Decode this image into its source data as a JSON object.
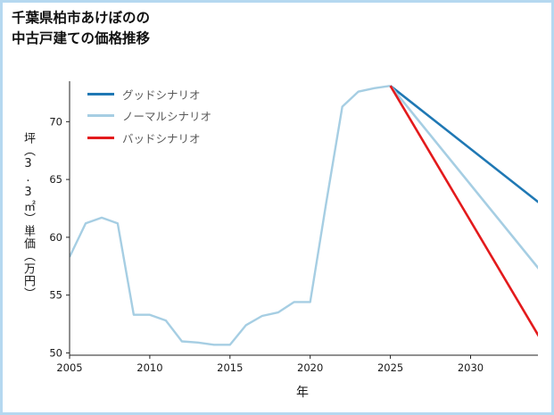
{
  "window": {
    "background": "#ffffff",
    "border_color": "#b5d8f0"
  },
  "header": {
    "title_line1": "千葉県柏市あけぼのの",
    "title_line2": "中古戸建ての価格推移"
  },
  "chart_data": {
    "type": "line",
    "title": "千葉県柏市あけぼのの中古戸建ての価格推移",
    "xlabel": "年",
    "ylabel": "坪（3.3㎡）単価（万円）",
    "x_range": [
      2005,
      2034.2
    ],
    "y_range": [
      49.8,
      73.5
    ],
    "x_ticks": [
      2005,
      2010,
      2015,
      2020,
      2025,
      2030
    ],
    "y_ticks": [
      50,
      55,
      60,
      65,
      70
    ],
    "grid": false,
    "legend_position": "upper-left-inside",
    "series": [
      {
        "id": "history",
        "label": null,
        "color": "#a6cee3",
        "width": 2.4,
        "x": [
          2005,
          2006,
          2007,
          2008,
          2009,
          2010,
          2011,
          2012,
          2013,
          2014,
          2015,
          2016,
          2017,
          2018,
          2019,
          2020,
          2021,
          2022,
          2023,
          2024,
          2025
        ],
        "y": [
          58.3,
          61.2,
          61.7,
          61.2,
          53.3,
          53.3,
          52.8,
          51.0,
          50.9,
          50.7,
          50.7,
          52.4,
          53.2,
          53.5,
          54.4,
          54.4,
          63.0,
          71.3,
          72.6,
          72.9,
          73.1
        ]
      },
      {
        "id": "good-scenario",
        "label": "グッドシナリオ",
        "color": "#1f78b4",
        "width": 2.6,
        "x": [
          2025,
          2035
        ],
        "y": [
          73.1,
          62.2
        ]
      },
      {
        "id": "normal-scenario",
        "label": "ノーマルシナリオ",
        "color": "#a6cee3",
        "width": 2.6,
        "x": [
          2025,
          2035
        ],
        "y": [
          73.1,
          56.0
        ]
      },
      {
        "id": "bad-scenario",
        "label": "バッドシナリオ",
        "color": "#e31a1c",
        "width": 2.6,
        "x": [
          2025,
          2035
        ],
        "y": [
          73.1,
          49.7
        ]
      }
    ]
  }
}
